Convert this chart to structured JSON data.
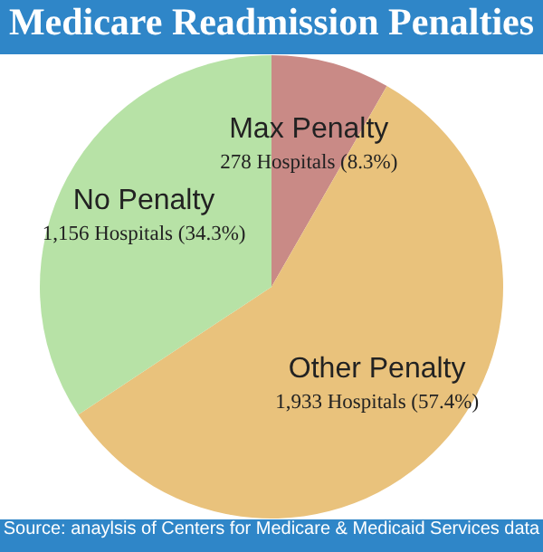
{
  "chart_data": {
    "type": "pie",
    "title": "Medicare Readmission Penalties",
    "categories": [
      "Max Penalty",
      "Other Penalty",
      "No Penalty"
    ],
    "values": [
      8.3,
      57.4,
      34.3
    ],
    "colors": [
      "#c98a86",
      "#e9c27c",
      "#b7e2a6"
    ],
    "value_labels": [
      "278 Hospitals (8.3%)",
      "1,933 Hospitals (57.4%)",
      "1,156 Hospitals (34.3%)"
    ],
    "annotations": [
      "Source: anaylsis of Centers for Medicare & Medicaid Services data"
    ]
  }
}
